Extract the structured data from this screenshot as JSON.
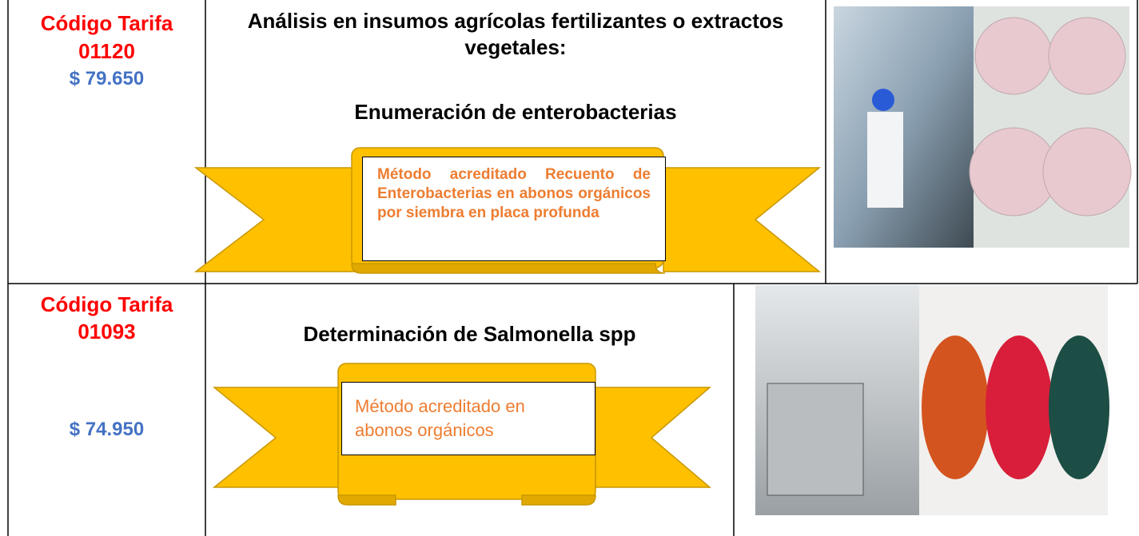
{
  "rows": [
    {
      "code_label": "Código Tarifa",
      "code": "01120",
      "price": "$ 79.650",
      "title": "Análisis en insumos agrícolas fertilizantes o extractos vegetales:",
      "subtitle": "Enumeración de enterobacterias",
      "ribbon_text": "Método acreditado Recuento de Enterobacterias en abonos orgánicos por siembra en placa profunda"
    },
    {
      "code_label": "Código Tarifa",
      "code": "01093",
      "price": "$ 74.950",
      "subtitle": "Determinación de Salmonella spp",
      "ribbon_text": "Método acreditado en abonos orgánicos"
    }
  ]
}
